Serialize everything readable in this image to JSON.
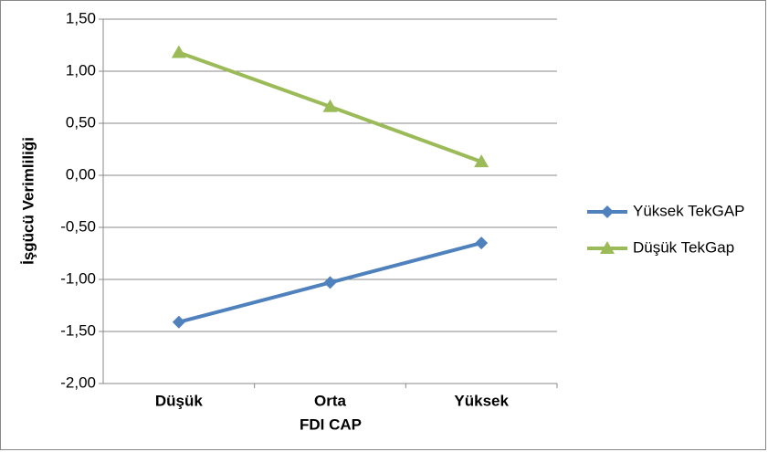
{
  "chart_data": {
    "type": "line",
    "x_label": "FDI CAP",
    "y_label": "İşgücü Verimliliği",
    "categories": [
      "Düşük",
      "Orta",
      "Yüksek"
    ],
    "series": [
      {
        "name": "Yüksek TekGAP",
        "color": "#4f81bd",
        "marker": "diamond",
        "values": [
          -1.41,
          -1.03,
          -0.65
        ]
      },
      {
        "name": "Düşük TekGap",
        "color": "#9bbb59",
        "marker": "triangle",
        "values": [
          1.18,
          0.66,
          0.13
        ]
      }
    ],
    "ylim": [
      -2,
      1.5
    ],
    "yticks": [
      {
        "value": 1.5,
        "label": "1,50"
      },
      {
        "value": 1,
        "label": "1,00"
      },
      {
        "value": 0.5,
        "label": "0,50"
      },
      {
        "value": 0,
        "label": "0,00"
      },
      {
        "value": -0.5,
        "label": "-0,50"
      },
      {
        "value": -1,
        "label": "-1,00"
      },
      {
        "value": -1.5,
        "label": "-1,50"
      },
      {
        "value": -2,
        "label": "-2,00"
      }
    ],
    "grid": true,
    "legend": "right"
  }
}
